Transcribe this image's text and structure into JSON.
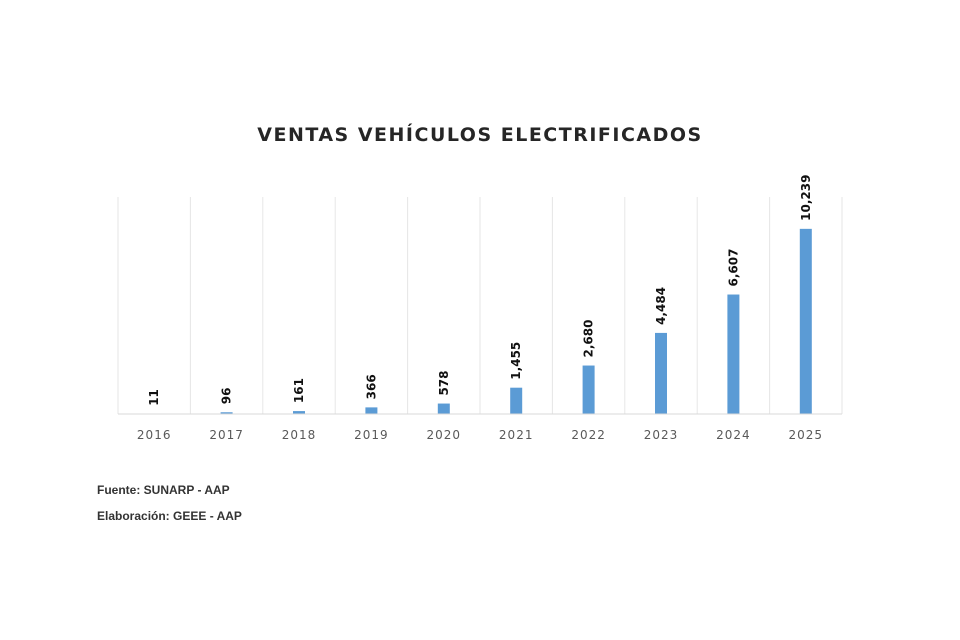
{
  "chart_data": {
    "type": "bar",
    "title": "VENTAS VEHÍCULOS ELECTRIFICADOS",
    "categories": [
      "2016",
      "2017",
      "2018",
      "2019",
      "2020",
      "2021",
      "2022",
      "2023",
      "2024",
      "2025"
    ],
    "values": [
      11,
      96,
      161,
      366,
      578,
      1455,
      2680,
      4484,
      6607,
      10239
    ],
    "data_labels": [
      "11",
      "96",
      "161",
      "366",
      "578",
      "1,455",
      "2,680",
      "4,484",
      "6,607",
      "10,239"
    ],
    "xlabel": "",
    "ylabel": "",
    "ylim": [
      0,
      12000
    ],
    "grid": "vertical category separators",
    "legend": "none",
    "bar_color": "#5b9bd5"
  },
  "footnotes": {
    "source": "Fuente: SUNARP - AAP",
    "elaboration": "Elaboración: GEEE - AAP"
  }
}
